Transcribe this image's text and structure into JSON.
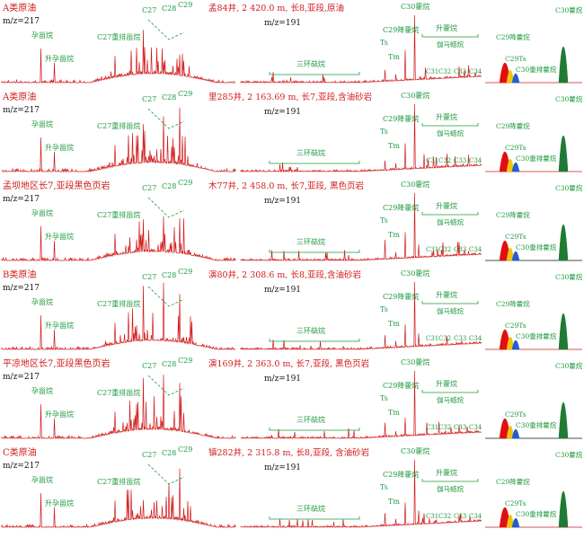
{
  "figure": {
    "rows": [
      {
        "category": "A类原油",
        "m217": "m/z=217",
        "m191": "m/z=191",
        "sample": "孟84井, 2 420.0 m, 长8,亚段,原油",
        "sterane_labels": [
          "孕甾烷",
          "升孕甾烷",
          "C27重排甾烷",
          "C27",
          "C28",
          "C29"
        ],
        "terpane_labels": [
          "三环萜烷",
          "Ts",
          "Tm",
          "C29降藿烷",
          "C30藿烷",
          "升藿烷",
          "伽马蜡烷",
          "C31",
          "C32",
          "C33",
          "C34"
        ],
        "zoom_labels": [
          "C29降藿烷",
          "C29Ts",
          "C30重排藿烷",
          "C30藿烷"
        ]
      },
      {
        "category": "A类原油",
        "m217": "m/z=217",
        "m191": "m/z=191",
        "sample": "里285井, 2 163.69 m, 长7,亚段,含油砂岩",
        "sterane_labels": [
          "孕甾烷",
          "升孕甾烷",
          "C27重排甾烷",
          "C27",
          "C28",
          "C29"
        ],
        "terpane_labels": [
          "三环萜烷",
          "Ts",
          "Tm",
          "C29降藿烷",
          "C30藿烷",
          "升藿烷",
          "伽马蜡烷",
          "C31",
          "C32",
          "C33",
          "C34"
        ],
        "zoom_labels": [
          "C29降藿烷",
          "C29Ts",
          "C30重排藿烷",
          "C30藿烷"
        ]
      },
      {
        "category": "孟坝地区长7,亚段黑色页岩",
        "m217": "m/z=217",
        "m191": "m/z=191",
        "sample": "木77井, 2 458.0 m, 长7,亚段, 黑色页岩",
        "sterane_labels": [
          "孕甾烷",
          "升孕甾烷",
          "C27重排甾烷",
          "C27",
          "C28",
          "C29"
        ],
        "terpane_labels": [
          "三环萜烷",
          "Ts",
          "Tm",
          "C29降藿烷",
          "C30藿烷",
          "升藿烷",
          "伽马蜡烷",
          "C31",
          "C32",
          "C33",
          "C34"
        ],
        "zoom_labels": [
          "C29降藿烷",
          "C29Ts",
          "C30重排藿烷",
          "C30藿烷"
        ]
      },
      {
        "category": "B类原油",
        "m217": "m/z=217",
        "m191": "m/z=191",
        "sample": "演80井, 2 308.6 m, 长8,亚段,含油砂岩",
        "sterane_labels": [
          "孕甾烷",
          "升孕甾烷",
          "C27重排甾烷",
          "C27",
          "C28",
          "C29"
        ],
        "terpane_labels": [
          "三环萜烷",
          "Ts",
          "Tm",
          "C29降藿烷",
          "C30藿烷",
          "升藿烷",
          "伽马蜡烷",
          "C31",
          "C32",
          "C33",
          "C34"
        ],
        "zoom_labels": [
          "C29降藿烷",
          "C29Ts",
          "C30重排藿烷",
          "C30藿烷"
        ]
      },
      {
        "category": "平凉地区长7,亚段黑色页岩",
        "m217": "m/z=217",
        "m191": "m/z=191",
        "sample": "演169井, 2 363.0 m, 长7,亚段, 黑色页岩",
        "sterane_labels": [
          "孕甾烷",
          "升孕甾烷",
          "C27重排甾烷",
          "C27",
          "C28",
          "C29"
        ],
        "terpane_labels": [
          "三环萜烷",
          "Ts",
          "Tm",
          "C29降藿烷",
          "C30藿烷",
          "升藿烷",
          "伽马蜡烷",
          "C31",
          "C32",
          "C33",
          "C34"
        ],
        "zoom_labels": [
          "C29Ts",
          "C30重排藿烷",
          "C30藿烷"
        ]
      },
      {
        "category": "C类原油",
        "m217": "m/z=217",
        "m191": "m/z=191",
        "sample": "镇282井, 2 315.8 m, 长8,亚段, 含油砂岩",
        "sterane_labels": [
          "孕甾烷",
          "升孕甾烷",
          "C27重排甾烷",
          "C27",
          "C28",
          "C29"
        ],
        "terpane_labels": [
          "三环萜烷",
          "Ts",
          "Tm",
          "C29降藿烷",
          "C30藿烷",
          "升藿烷",
          "伽马蜡烷",
          "C31",
          "C32",
          "C33",
          "C34"
        ],
        "zoom_labels": [
          "C29降藿烷",
          "C29Ts",
          "C30重排藿烷",
          "C30藿烷"
        ]
      }
    ],
    "colors": {
      "trace": "#d11a1a",
      "annotation": "#1f9a3f",
      "label": "#d11a1a",
      "text": "#111111",
      "peak_green": "#1f7a34",
      "peak_yellow": "#f2c40f",
      "peak_blue": "#1f5fd1",
      "peak_red": "#e01010",
      "peak_black": "#111111"
    }
  },
  "chart_data": {
    "type": "line",
    "description_series": "Mass chromatograms (m/z=217 steranes, m/z=191 terpanes) for six samples; intensities are relative and unlabeled",
    "panels": [
      {
        "sample": "孟84井",
        "relative_peaks": {
          "C27": 0.68,
          "C28": 0.7,
          "C29": 0.95,
          "C30藿烷": 1.0,
          "C29降藿烷": 0.47,
          "Ts": 0.18,
          "Tm": 0.1
        }
      },
      {
        "sample": "里285井",
        "relative_peaks": {
          "C27": 0.6,
          "C28": 0.72,
          "C29": 0.88,
          "C30藿烷": 1.0,
          "C29降藿烷": 0.4,
          "Ts": 0.15,
          "Tm": 0.1
        }
      },
      {
        "sample": "木77井",
        "relative_peaks": {
          "C27": 0.5,
          "C28": 0.55,
          "C29": 0.6,
          "C30藿烷": 1.0,
          "C29降藿烷": 0.4,
          "Ts": 0.3,
          "Tm": 0.1
        }
      },
      {
        "sample": "演80井",
        "relative_peaks": {
          "C27": 0.85,
          "C28": 0.9,
          "C29": 0.75,
          "C30藿烷": 1.0,
          "C29降藿烷": 0.35,
          "Ts": 0.2,
          "Tm": 0.1
        }
      },
      {
        "sample": "演169井",
        "relative_peaks": {
          "C27": 0.8,
          "C28": 0.85,
          "C29": 0.75,
          "C30藿烷": 1.0,
          "C29降藿烷": 0.28,
          "Ts": 0.22,
          "Tm": 0.08
        }
      },
      {
        "sample": "镇282井",
        "relative_peaks": {
          "C27": 0.75,
          "C28": 0.9,
          "C29": 0.8,
          "C30藿烷": 1.0,
          "C29降藿烷": 0.35,
          "Ts": 0.2,
          "Tm": 0.1
        }
      }
    ]
  }
}
